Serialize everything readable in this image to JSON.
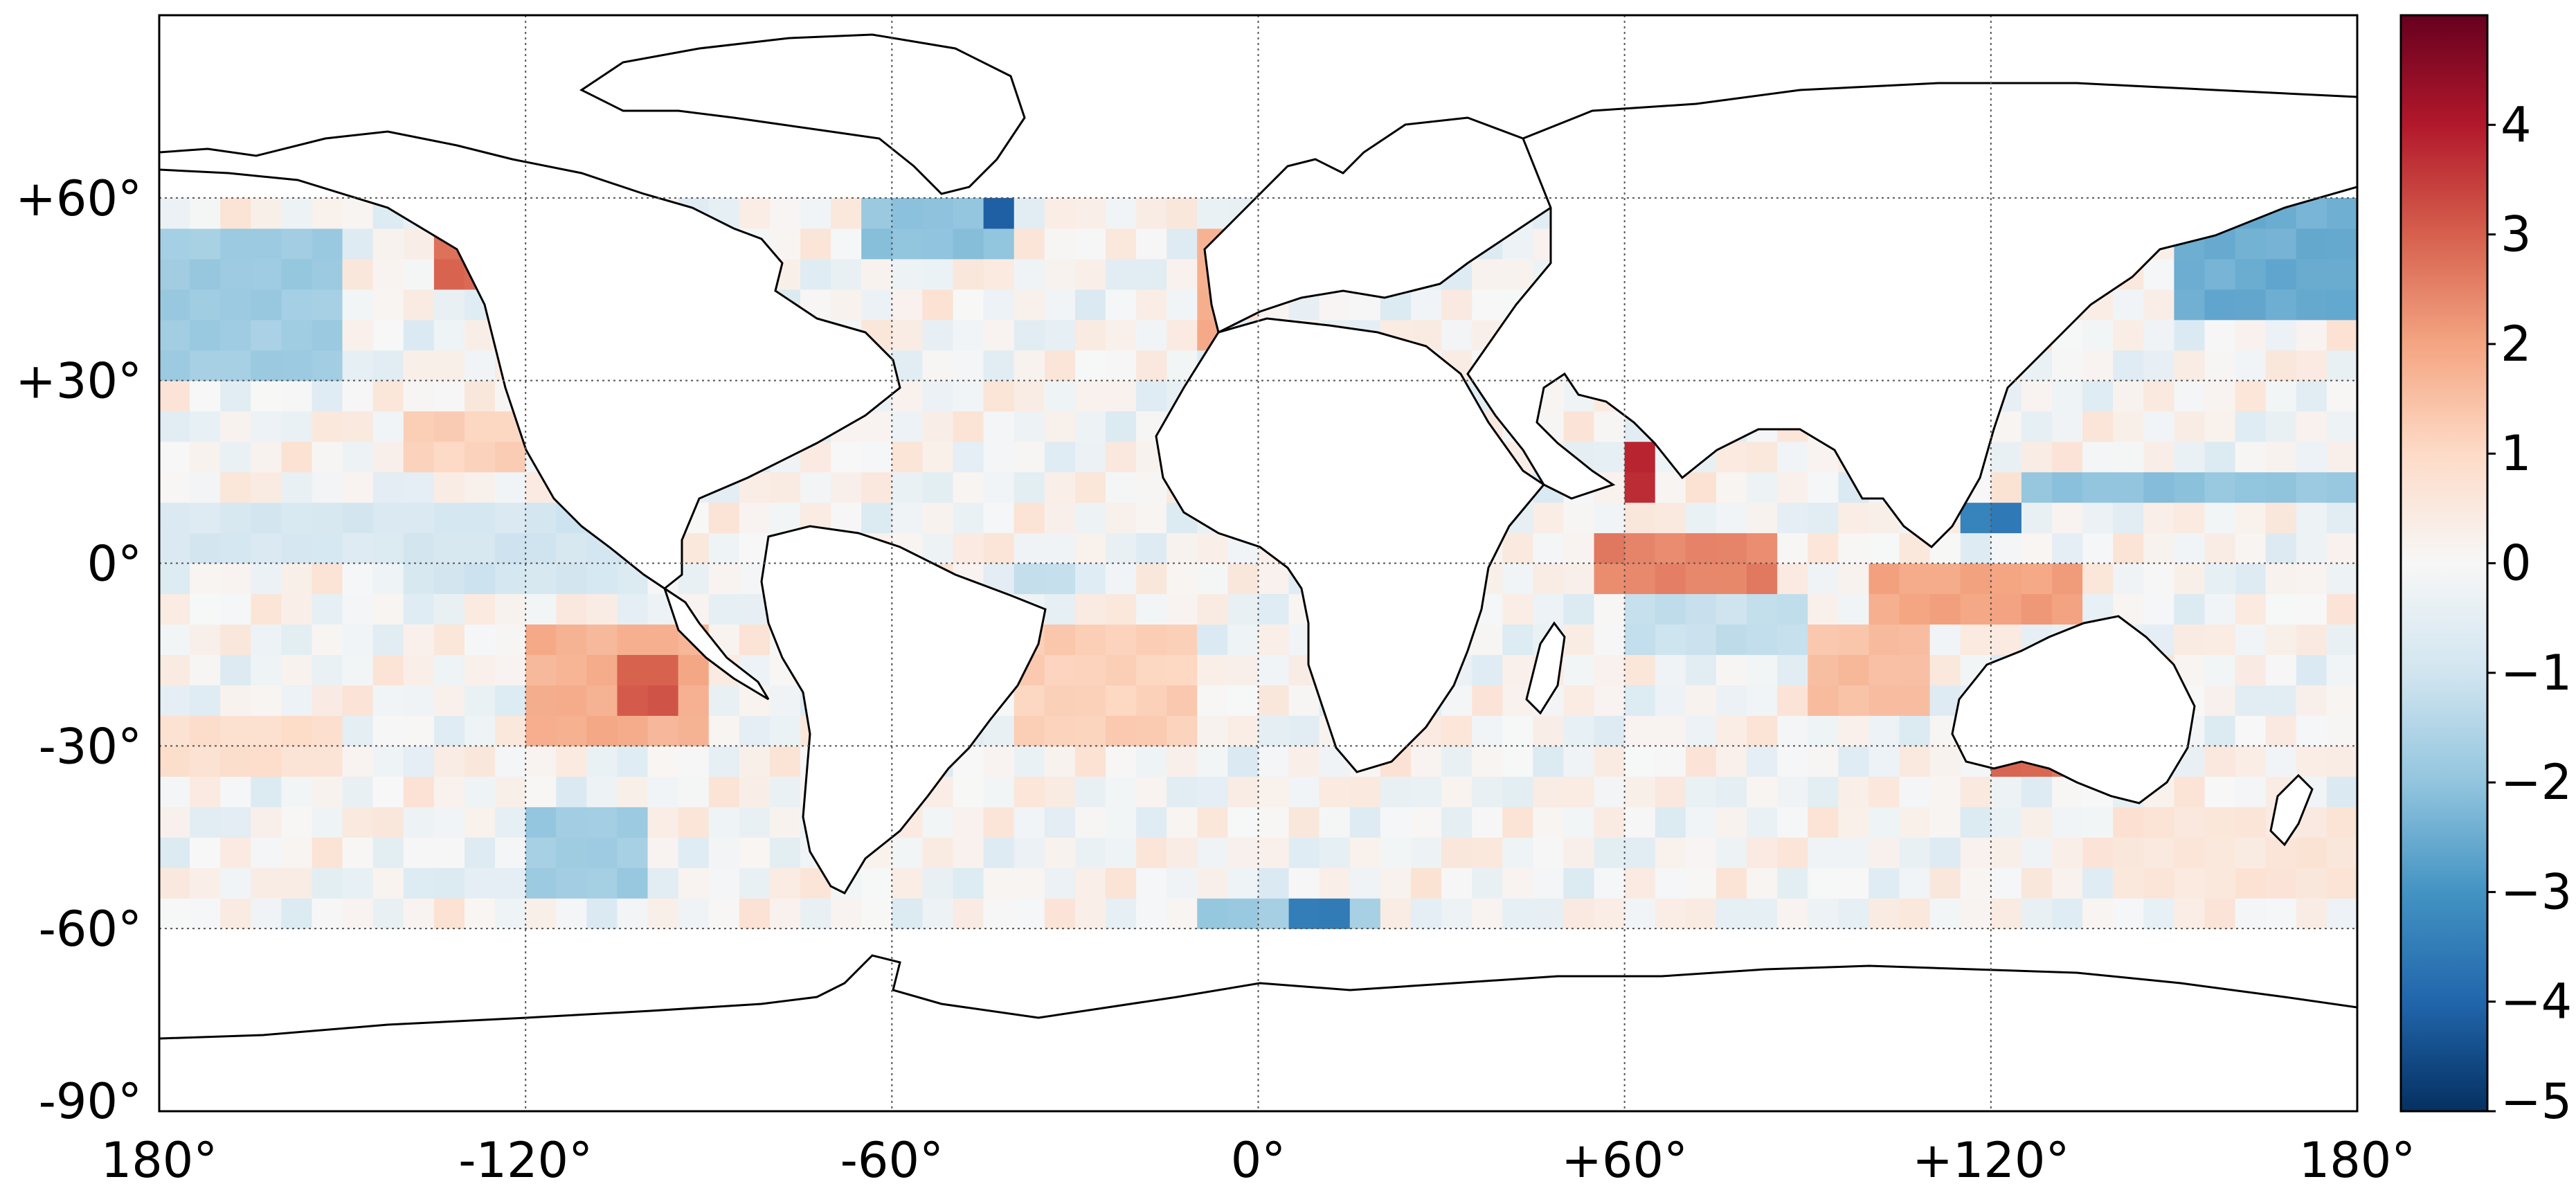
{
  "chart_data": {
    "type": "heatmap",
    "title": "",
    "xlabel": "",
    "ylabel": "",
    "projection": "equirectangular",
    "xlim": [
      -180,
      180
    ],
    "ylim": [
      -90,
      90
    ],
    "data_lat_range": [
      -60,
      60
    ],
    "grid": true,
    "grid_style": "dotted",
    "colormap": "diverging red-white-blue (RdBu_r)",
    "x_ticks": [
      {
        "value": -180,
        "label": "180°"
      },
      {
        "value": -120,
        "label": "-120°"
      },
      {
        "value": -60,
        "label": "-60°"
      },
      {
        "value": 0,
        "label": "0°"
      },
      {
        "value": 60,
        "label": "+60°"
      },
      {
        "value": 120,
        "label": "+120°"
      },
      {
        "value": 180,
        "label": "180°"
      }
    ],
    "y_ticks": [
      {
        "value": 60,
        "label": "+60°"
      },
      {
        "value": 30,
        "label": "+30°"
      },
      {
        "value": 0,
        "label": "0°"
      },
      {
        "value": -30,
        "label": "-30°"
      },
      {
        "value": -60,
        "label": "-60°"
      },
      {
        "value": -90,
        "label": "-90°"
      }
    ],
    "colorbar": {
      "min": -5,
      "max": 5,
      "placement": "right",
      "ticks": [
        {
          "value": 4,
          "label": "4"
        },
        {
          "value": 3,
          "label": "3"
        },
        {
          "value": 2,
          "label": "2"
        },
        {
          "value": 1,
          "label": "1"
        },
        {
          "value": 0,
          "label": "0"
        },
        {
          "value": -1,
          "label": "−1"
        },
        {
          "value": -2,
          "label": "−2"
        },
        {
          "value": -3,
          "label": "−3"
        },
        {
          "value": -4,
          "label": "−4"
        },
        {
          "value": -5,
          "label": "−5"
        }
      ]
    },
    "anomaly_regions": [
      {
        "lon": [
          -180,
          -150
        ],
        "lat": [
          30,
          55
        ],
        "value": -1.8
      },
      {
        "lon": [
          -135,
          -125
        ],
        "lat": [
          45,
          60
        ],
        "value": 2.8
      },
      {
        "lon": [
          -180,
          -140
        ],
        "lat": [
          0,
          10
        ],
        "value": -0.8
      },
      {
        "lon": [
          -140,
          -100
        ],
        "lat": [
          -5,
          10
        ],
        "value": -0.9
      },
      {
        "lon": [
          -140,
          -120
        ],
        "lat": [
          15,
          25
        ],
        "value": 1.2
      },
      {
        "lon": [
          -120,
          -90
        ],
        "lat": [
          -30,
          -10
        ],
        "value": 1.8
      },
      {
        "lon": [
          -105,
          -95
        ],
        "lat": [
          -25,
          -15
        ],
        "value": 3.0
      },
      {
        "lon": [
          -120,
          -100
        ],
        "lat": [
          -55,
          -40
        ],
        "value": -1.8
      },
      {
        "lon": [
          -180,
          -150
        ],
        "lat": [
          -35,
          -25
        ],
        "value": 0.8
      },
      {
        "lon": [
          -65,
          -40
        ],
        "lat": [
          50,
          60
        ],
        "value": -2.0
      },
      {
        "lon": [
          -48,
          -42
        ],
        "lat": [
          55,
          60
        ],
        "value": -4.0
      },
      {
        "lon": [
          -12,
          -8
        ],
        "lat": [
          35,
          55
        ],
        "value": 1.8
      },
      {
        "lon": [
          -40,
          -10
        ],
        "lat": [
          -30,
          -10
        ],
        "value": 1.2
      },
      {
        "lon": [
          -40,
          -30
        ],
        "lat": [
          -5,
          0
        ],
        "value": -1.2
      },
      {
        "lon": [
          -10,
          20
        ],
        "lat": [
          -60,
          -55
        ],
        "value": -1.8
      },
      {
        "lon": [
          5,
          12
        ],
        "lat": [
          -60,
          -57
        ],
        "value": -3.5
      },
      {
        "lon": [
          55,
          85
        ],
        "lat": [
          -5,
          5
        ],
        "value": 2.5
      },
      {
        "lon": [
          60,
          65
        ],
        "lat": [
          8,
          18
        ],
        "value": 3.8
      },
      {
        "lon": [
          60,
          90
        ],
        "lat": [
          -15,
          -5
        ],
        "value": -1.2
      },
      {
        "lon": [
          90,
          110
        ],
        "lat": [
          -25,
          -10
        ],
        "value": 1.5
      },
      {
        "lon": [
          100,
          135
        ],
        "lat": [
          -10,
          0
        ],
        "value": 2.0
      },
      {
        "lon": [
          115,
          125
        ],
        "lat": [
          3,
          7
        ],
        "value": -3.5
      },
      {
        "lon": [
          125,
          180
        ],
        "lat": [
          8,
          12
        ],
        "value": -2.0
      },
      {
        "lon": [
          150,
          180
        ],
        "lat": [
          40,
          60
        ],
        "value": -2.5
      },
      {
        "lon": [
          120,
          135
        ],
        "lat": [
          -38,
          -32
        ],
        "value": 2.8
      },
      {
        "lon": [
          -140,
          -120
        ],
        "lat": [
          -55,
          -50
        ],
        "value": -0.6
      },
      {
        "lon": [
          140,
          180
        ],
        "lat": [
          -55,
          -40
        ],
        "value": 0.6
      }
    ]
  }
}
